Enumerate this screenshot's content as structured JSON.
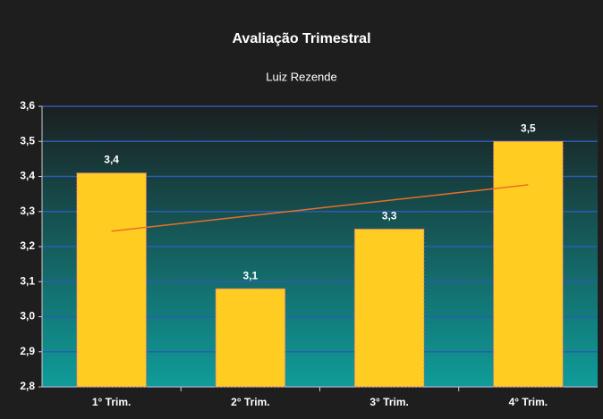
{
  "chart_data": {
    "type": "bar",
    "title": "Avaliação Trimestral",
    "subtitle": "Luiz Rezende",
    "categories": [
      "1° Trim.",
      "2° Trim.",
      "3° Trim.",
      "4° Trim."
    ],
    "values": [
      3.41,
      3.08,
      3.25,
      3.5
    ],
    "value_labels": [
      "3,4",
      "3,1",
      "3,3",
      "3,5"
    ],
    "color": "#ffcc22",
    "trendline": true,
    "trendline_color": "#e8702a",
    "ylim": [
      2.8,
      3.6
    ],
    "yticks": [
      {
        "value": 2.8,
        "label": "2,8"
      },
      {
        "value": 2.9,
        "label": "2,9"
      },
      {
        "value": 3.0,
        "label": "3,0"
      },
      {
        "value": 3.1,
        "label": "3,1"
      },
      {
        "value": 3.2,
        "label": "3,2"
      },
      {
        "value": 3.3,
        "label": "3,3"
      },
      {
        "value": 3.4,
        "label": "3,4"
      },
      {
        "value": 3.5,
        "label": "3,5"
      },
      {
        "value": 3.6,
        "label": "3,6"
      }
    ],
    "grid": true
  }
}
